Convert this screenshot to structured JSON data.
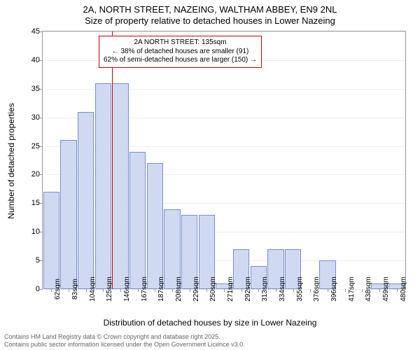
{
  "title1": "2A, NORTH STREET, NAZEING, WALTHAM ABBEY, EN9 2NL",
  "title2": "Size of property relative to detached houses in Lower Nazeing",
  "ylabel": "Number of detached properties",
  "xlabel": "Distribution of detached houses by size in Lower Nazeing",
  "footer1": "Contains HM Land Registry data © Crown copyright and database right 2025.",
  "footer2": "Contains public sector information licensed under the Open Government Licence v3.0.",
  "chart": {
    "type": "bar",
    "ylim": [
      0,
      45
    ],
    "ytick_step": 5,
    "bar_fill": "#cfd9f2",
    "bar_stroke": "#7a8fc9",
    "grid_color": "#eeeeee",
    "axis_color": "#999999",
    "refline_color": "#cc0000",
    "categories": [
      "62sqm",
      "83sqm",
      "104sqm",
      "125sqm",
      "146sqm",
      "167sqm",
      "187sqm",
      "208sqm",
      "229sqm",
      "250sqm",
      "271sqm",
      "292sqm",
      "313sqm",
      "334sqm",
      "355sqm",
      "376sqm",
      "396sqm",
      "417sqm",
      "438sqm",
      "459sqm",
      "480sqm"
    ],
    "values": [
      17,
      26,
      31,
      36,
      36,
      24,
      22,
      14,
      13,
      13,
      1,
      7,
      4,
      7,
      7,
      0,
      5,
      0,
      0,
      1,
      1
    ],
    "refline_index": 3.5,
    "annot": {
      "line1": "2A NORTH STREET: 135sqm",
      "line2": "← 38% of detached houses are smaller (91)",
      "line3": "62% of semi-detached houses are larger (150) →"
    }
  }
}
